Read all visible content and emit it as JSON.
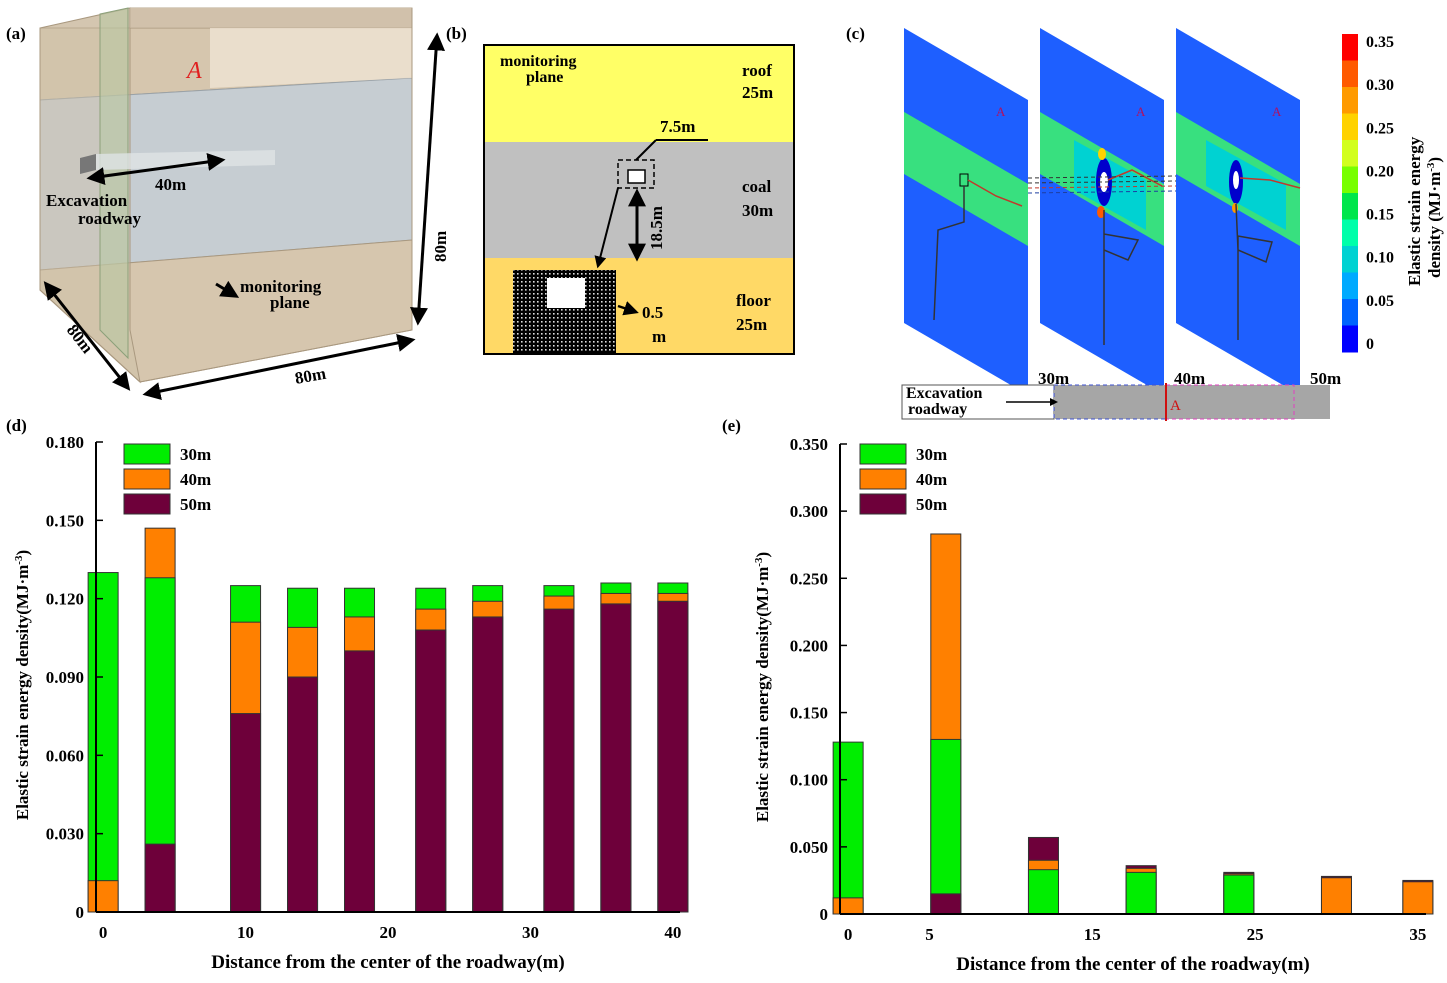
{
  "panels": {
    "a": {
      "label": "(a)",
      "marker": "A",
      "dim_40": "40m",
      "dim_80_right": "80m",
      "dim_80_left": "80m",
      "dim_80_bottom": "80m",
      "roadway_line1": "Excavation",
      "roadway_line2": "roadway",
      "monitor_line1": "monitoring",
      "monitor_line2": "plane"
    },
    "b": {
      "label": "(b)",
      "monitor_line1": "monitoring",
      "monitor_line2": "plane",
      "roof_line1": "roof",
      "roof_line2": "25m",
      "coal_line1": "coal",
      "coal_line2": "30m",
      "floor_line1": "floor",
      "floor_line2": "25m",
      "dim_75": "7.5m",
      "dim_185": "18.5m",
      "dim_05_line1": "0.5",
      "dim_05_line2": "m"
    },
    "c": {
      "label": "(c)",
      "marker": "A",
      "colorbar_title_line1": "Elastic strain energy",
      "colorbar_title_line2": "density (MJ·m",
      "colorbar_title_sup": "-3",
      "colorbar_title_end": ")",
      "colorbar_ticks": [
        "0.35",
        "0.30",
        "0.25",
        "0.20",
        "0.15",
        "0.10",
        "0.05",
        "0"
      ],
      "colorbar_colors": [
        "#ff0000",
        "#ff5a00",
        "#ff9a00",
        "#ffd200",
        "#d2ff1e",
        "#78ff00",
        "#00e64b",
        "#00ffaa",
        "#00d2d2",
        "#00aaff",
        "#0064ff",
        "#0000ff"
      ],
      "slice_labels": [
        "30m",
        "40m",
        "50m"
      ],
      "roadway_line1": "Excavation",
      "roadway_line2": "roadway",
      "road_marker": "A"
    },
    "d": {
      "label": "(d)"
    },
    "e": {
      "label": "(e)"
    }
  },
  "chart_data": [
    {
      "type": "bar",
      "stacking": "overlay",
      "id": "d",
      "x": [
        0,
        4,
        10,
        14,
        18,
        23,
        27,
        32,
        36,
        40
      ],
      "xticks": [
        "0",
        "10",
        "20",
        "30",
        "40"
      ],
      "xtick_values": [
        0,
        10,
        20,
        30,
        40
      ],
      "xlim": [
        -0.5,
        40.5
      ],
      "ylim": [
        0,
        0.18
      ],
      "yticks": [
        "0",
        "0.030",
        "0.060",
        "0.090",
        "0.120",
        "0.150",
        "0.180"
      ],
      "ytick_values": [
        0,
        0.03,
        0.06,
        0.09,
        0.12,
        0.15,
        0.18
      ],
      "xlabel": "Distance from the center of the roadway(m)",
      "ylabel_main": "Elastic strain energy density(MJ·m",
      "ylabel_sup": "-3",
      "ylabel_end": ")",
      "legend_position": "top-left",
      "series": [
        {
          "name": "30m",
          "color": "#00ee00",
          "values": [
            0.13,
            0.128,
            0.125,
            0.124,
            0.124,
            0.124,
            0.125,
            0.125,
            0.126,
            0.126
          ]
        },
        {
          "name": "40m",
          "color": "#ff8000",
          "values": [
            0.012,
            0.147,
            0.111,
            0.109,
            0.113,
            0.116,
            0.119,
            0.121,
            0.122,
            0.122
          ]
        },
        {
          "name": "50m",
          "color": "#6e003a",
          "values": [
            0.0,
            0.026,
            0.076,
            0.09,
            0.1,
            0.108,
            0.113,
            0.116,
            0.118,
            0.119
          ]
        }
      ]
    },
    {
      "type": "bar",
      "stacking": "overlay",
      "id": "e",
      "x": [
        0,
        6,
        12,
        18,
        24,
        30,
        35
      ],
      "xticks": [
        "0",
        "5",
        "15",
        "25",
        "35"
      ],
      "xtick_values": [
        0,
        5,
        15,
        25,
        35
      ],
      "xlim": [
        -0.5,
        35.5
      ],
      "ylim": [
        0,
        0.35
      ],
      "yticks": [
        "0",
        "0.050",
        "0.100",
        "0.150",
        "0.200",
        "0.250",
        "0.300",
        "0.350"
      ],
      "ytick_values": [
        0,
        0.05,
        0.1,
        0.15,
        0.2,
        0.25,
        0.3,
        0.35
      ],
      "xlabel": "Distance from the center of the roadway(m)",
      "ylabel_main": "Elastic strain energy density(MJ·m",
      "ylabel_sup": "-3",
      "ylabel_end": ")",
      "legend_position": "top-left",
      "series": [
        {
          "name": "30m",
          "color": "#00ee00",
          "values": [
            0.128,
            0.13,
            0.033,
            0.031,
            0.029,
            0.0,
            0.0
          ]
        },
        {
          "name": "40m",
          "color": "#ff8000",
          "values": [
            0.012,
            0.283,
            0.04,
            0.034,
            0.03,
            0.027,
            0.024
          ]
        },
        {
          "name": "50m",
          "color": "#6e003a",
          "values": [
            0.0,
            0.015,
            0.057,
            0.036,
            0.031,
            0.028,
            0.025
          ]
        }
      ]
    }
  ]
}
